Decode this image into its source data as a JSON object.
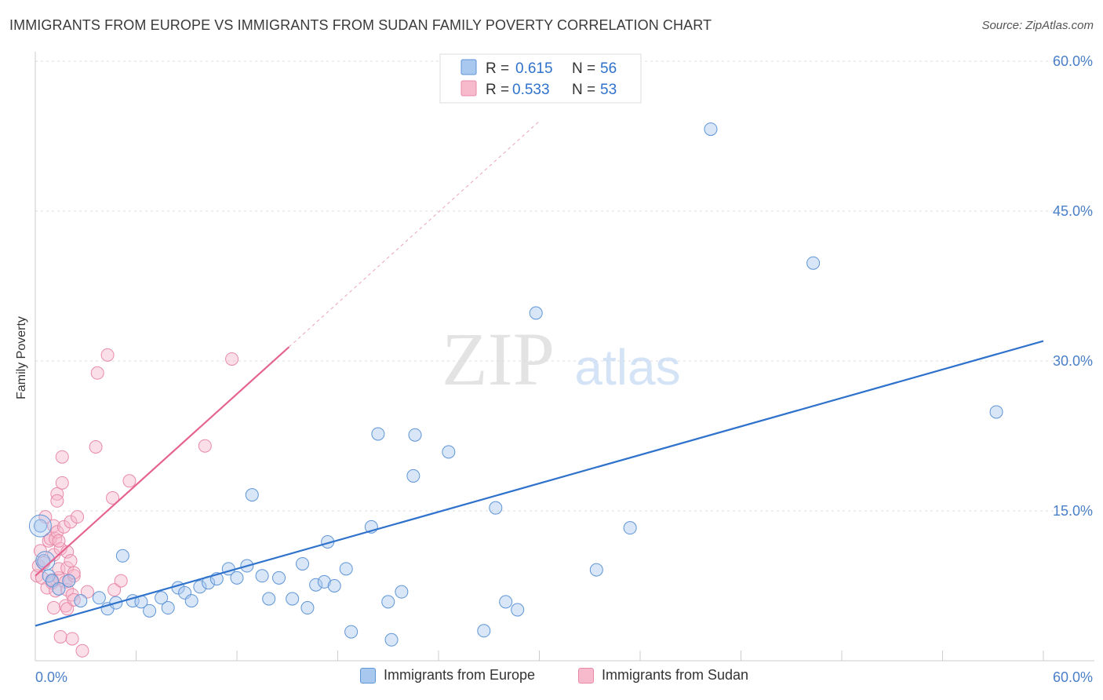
{
  "header": {
    "title": "IMMIGRANTS FROM EUROPE VS IMMIGRANTS FROM SUDAN FAMILY POVERTY CORRELATION CHART",
    "source": "Source: ZipAtlas.com"
  },
  "chart_data": {
    "type": "scatter",
    "title": "IMMIGRANTS FROM EUROPE VS IMMIGRANTS FROM SUDAN FAMILY POVERTY CORRELATION CHART",
    "xlabel": "",
    "ylabel": "Family Poverty",
    "xlim": [
      0,
      60
    ],
    "ylim": [
      0,
      60
    ],
    "x_tick_labels": [
      "0.0%",
      "60.0%"
    ],
    "y_ticks": [
      15,
      30,
      45,
      60
    ],
    "y_tick_labels": [
      "15.0%",
      "30.0%",
      "45.0%",
      "60.0%"
    ],
    "grid": true,
    "watermark": {
      "zip": "ZIP",
      "atlas": "atlas"
    },
    "colors": {
      "europe_fill": "#a9c8f0",
      "europe_stroke": "#5e95d6",
      "europe_line": "#2f72cc",
      "sudan_fill": "#f7b9cc",
      "sudan_stroke": "#e88aa8",
      "sudan_line": "#e5648f",
      "tick_label": "#4a7fc8",
      "grid": "#dddddd"
    },
    "legend": {
      "position": "top-center",
      "rows": [
        {
          "r_label": "R = ",
          "r_value": "0.615",
          "n_label": "N = ",
          "n_value": "56"
        },
        {
          "r_label": "R = ",
          "r_value": "0.533",
          "n_label": "N = ",
          "n_value": "53"
        }
      ]
    },
    "series": [
      {
        "name": "Immigrants from Europe",
        "trend": {
          "x0": 0,
          "y0": 3.5,
          "x1": 60,
          "y1": 32.0
        },
        "points": [
          [
            0.3,
            13.5
          ],
          [
            0.5,
            10.0
          ],
          [
            0.8,
            8.5
          ],
          [
            1.0,
            8.0
          ],
          [
            1.4,
            7.2
          ],
          [
            2.0,
            8.0
          ],
          [
            2.7,
            6.0
          ],
          [
            3.8,
            6.3
          ],
          [
            4.3,
            5.2
          ],
          [
            4.8,
            5.8
          ],
          [
            5.2,
            10.5
          ],
          [
            5.8,
            6.0
          ],
          [
            6.3,
            5.9
          ],
          [
            6.8,
            5.0
          ],
          [
            7.5,
            6.3
          ],
          [
            7.9,
            5.3
          ],
          [
            8.5,
            7.3
          ],
          [
            8.9,
            6.8
          ],
          [
            9.3,
            6.0
          ],
          [
            9.8,
            7.4
          ],
          [
            10.3,
            7.8
          ],
          [
            10.8,
            8.2
          ],
          [
            11.5,
            9.2
          ],
          [
            12.0,
            8.3
          ],
          [
            12.6,
            9.5
          ],
          [
            12.9,
            16.6
          ],
          [
            13.5,
            8.5
          ],
          [
            13.9,
            6.2
          ],
          [
            14.5,
            8.3
          ],
          [
            15.3,
            6.2
          ],
          [
            15.9,
            9.7
          ],
          [
            16.2,
            5.3
          ],
          [
            16.7,
            7.6
          ],
          [
            17.2,
            7.9
          ],
          [
            17.4,
            11.9
          ],
          [
            17.8,
            7.5
          ],
          [
            18.5,
            9.2
          ],
          [
            18.8,
            2.9
          ],
          [
            20.0,
            13.4
          ],
          [
            20.4,
            22.7
          ],
          [
            21.0,
            5.9
          ],
          [
            21.2,
            2.1
          ],
          [
            21.8,
            6.9
          ],
          [
            22.5,
            18.5
          ],
          [
            22.6,
            22.6
          ],
          [
            24.6,
            20.9
          ],
          [
            26.7,
            3.0
          ],
          [
            27.4,
            15.3
          ],
          [
            28.0,
            5.9
          ],
          [
            28.7,
            5.1
          ],
          [
            29.8,
            34.8
          ],
          [
            33.4,
            9.1
          ],
          [
            35.4,
            13.3
          ],
          [
            40.2,
            53.2
          ],
          [
            46.3,
            39.8
          ],
          [
            57.2,
            24.9
          ]
        ]
      },
      {
        "name": "Immigrants from Sudan",
        "trend": {
          "x0": 0,
          "y0": 8.5,
          "x1": 15.1,
          "y1": 31.4,
          "dash_to_x": 30,
          "dash_to_y": 54.0
        },
        "points": [
          [
            0.1,
            8.5
          ],
          [
            0.2,
            9.5
          ],
          [
            0.3,
            11.0
          ],
          [
            0.4,
            8.3
          ],
          [
            0.5,
            9.8
          ],
          [
            0.6,
            14.4
          ],
          [
            0.7,
            7.3
          ],
          [
            0.8,
            12.0
          ],
          [
            0.9,
            12.2
          ],
          [
            1.0,
            8.1
          ],
          [
            1.0,
            7.8
          ],
          [
            1.1,
            10.6
          ],
          [
            1.1,
            13.5
          ],
          [
            1.2,
            12.2
          ],
          [
            1.1,
            5.3
          ],
          [
            1.2,
            7.0
          ],
          [
            1.3,
            12.9
          ],
          [
            1.3,
            16.7
          ],
          [
            1.3,
            16.0
          ],
          [
            1.4,
            8.3
          ],
          [
            1.4,
            9.2
          ],
          [
            1.5,
            11.2
          ],
          [
            1.5,
            2.4
          ],
          [
            1.6,
            20.4
          ],
          [
            1.6,
            17.8
          ],
          [
            1.8,
            7.9
          ],
          [
            1.8,
            5.5
          ],
          [
            1.7,
            13.4
          ],
          [
            1.9,
            10.9
          ],
          [
            1.9,
            9.3
          ],
          [
            1.9,
            5.2
          ],
          [
            1.9,
            7.1
          ],
          [
            2.0,
            8.0
          ],
          [
            2.1,
            13.9
          ],
          [
            2.1,
            10.0
          ],
          [
            2.2,
            2.2
          ],
          [
            2.2,
            6.6
          ],
          [
            2.3,
            8.5
          ],
          [
            2.3,
            8.8
          ],
          [
            2.3,
            6.1
          ],
          [
            2.5,
            14.4
          ],
          [
            2.8,
            1.0
          ],
          [
            3.1,
            6.9
          ],
          [
            3.6,
            21.4
          ],
          [
            3.7,
            28.8
          ],
          [
            4.3,
            30.6
          ],
          [
            4.6,
            16.3
          ],
          [
            4.7,
            7.1
          ],
          [
            5.1,
            8.0
          ],
          [
            5.6,
            18.0
          ],
          [
            10.1,
            21.5
          ],
          [
            11.7,
            30.2
          ],
          [
            1.4,
            12.0
          ]
        ]
      }
    ]
  }
}
